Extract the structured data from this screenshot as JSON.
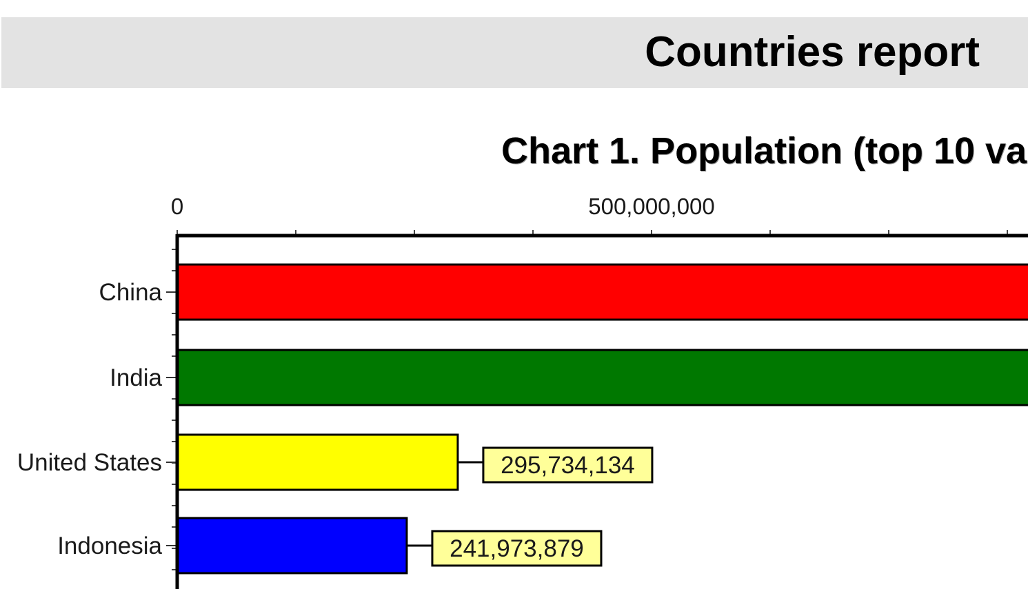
{
  "report": {
    "title": "Countries report"
  },
  "chart_data": {
    "type": "bar",
    "orientation": "horizontal",
    "title": "Chart 1. Population (top 10 va",
    "xlabel": "",
    "ylabel": "",
    "x_axis_position": "top",
    "x_ticks": [
      0,
      500000000
    ],
    "x_tick_labels": [
      "0",
      "500,000,000"
    ],
    "categories": [
      "China",
      "India",
      "United States",
      "Indonesia"
    ],
    "values": [
      1306313812,
      1080264388,
      295734134,
      241973879
    ],
    "data_labels": [
      "",
      "",
      "295,734,134",
      "241,973,879"
    ],
    "colors": [
      "#ff0000",
      "#007800",
      "#ffff00",
      "#0000ff"
    ],
    "label_box_color": "#ffff99",
    "grid": false,
    "legend": "none"
  }
}
